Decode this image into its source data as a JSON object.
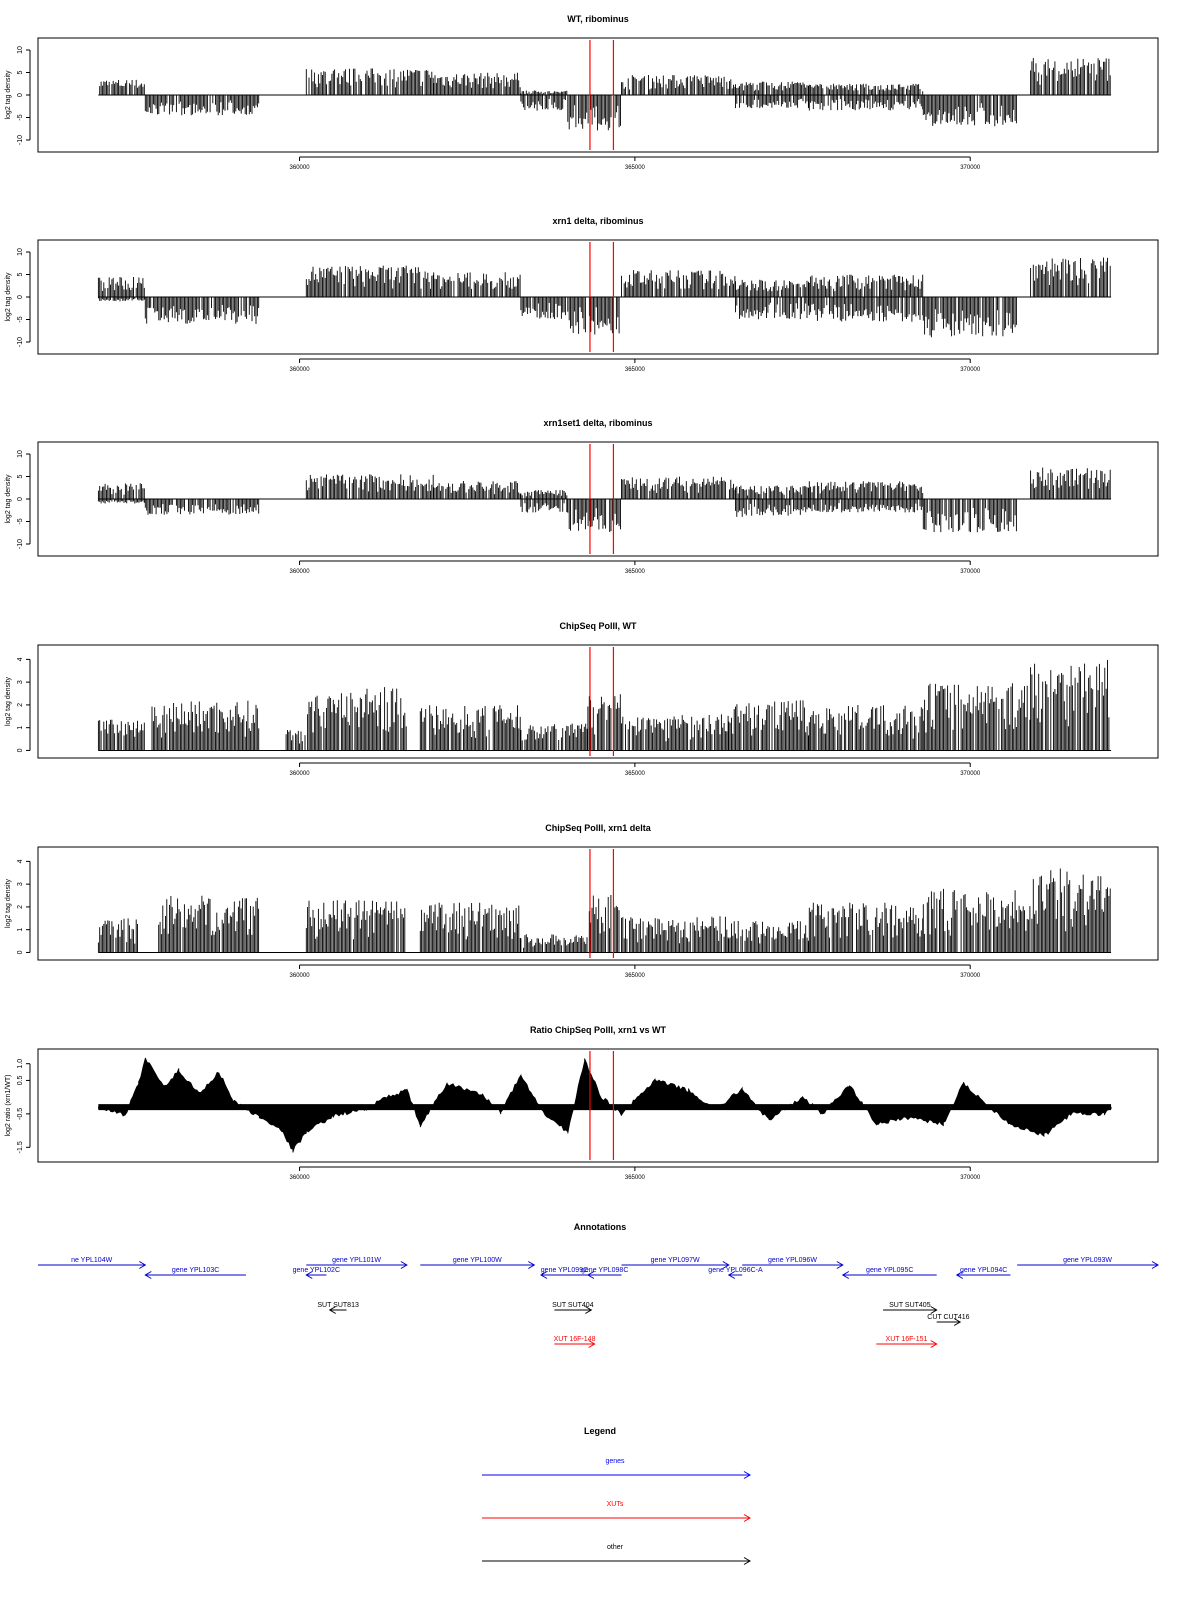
{
  "chart_data": [
    {
      "type": "bar",
      "title": "WT, ribominus",
      "ylabel": "log2 tag density",
      "ylim": [
        -12,
        12
      ],
      "yticks": [
        "10",
        "5",
        "0",
        "-5",
        "-10"
      ],
      "xlim": [
        356100,
        372800
      ],
      "xticks": [
        "360000",
        "365000",
        "370000"
      ],
      "markers": [
        364330,
        364680
      ],
      "series": [
        {
          "segments": [
            {
              "from": 357000,
              "to": 357700,
              "min": 0,
              "max": 3.5
            },
            {
              "from": 357700,
              "to": 359400,
              "min": -4.5,
              "max": 0
            },
            {
              "from": 360100,
              "to": 362000,
              "min": 0,
              "max": 6
            },
            {
              "from": 362000,
              "to": 363300,
              "min": 0,
              "max": 5
            },
            {
              "from": 363300,
              "to": 364000,
              "min": -3.5,
              "max": 1
            },
            {
              "from": 364000,
              "to": 364800,
              "min": -8,
              "max": 0
            },
            {
              "from": 364800,
              "to": 366500,
              "min": 0,
              "max": 4.5
            },
            {
              "from": 366500,
              "to": 367600,
              "min": -3,
              "max": 3
            },
            {
              "from": 367600,
              "to": 369300,
              "min": -3.5,
              "max": 2.5
            },
            {
              "from": 369300,
              "to": 370700,
              "min": -7,
              "max": 0
            },
            {
              "from": 370900,
              "to": 372100,
              "min": 0,
              "max": 8.5
            }
          ]
        }
      ]
    },
    {
      "type": "bar",
      "title": "xrn1 delta, ribominus",
      "ylabel": "log2 tag density",
      "ylim": [
        -12,
        12
      ],
      "yticks": [
        "10",
        "5",
        "0",
        "-5",
        "-10"
      ],
      "xlim": [
        356100,
        372800
      ],
      "xticks": [
        "360000",
        "365000",
        "370000"
      ],
      "markers": [
        364330,
        364680
      ],
      "series": [
        {
          "segments": [
            {
              "from": 357000,
              "to": 357700,
              "min": -1,
              "max": 4.5
            },
            {
              "from": 357700,
              "to": 359400,
              "min": -6,
              "max": 0
            },
            {
              "from": 360100,
              "to": 362000,
              "min": 0,
              "max": 7
            },
            {
              "from": 362000,
              "to": 363300,
              "min": 0,
              "max": 5.5
            },
            {
              "from": 363300,
              "to": 364000,
              "min": -5,
              "max": 0
            },
            {
              "from": 364000,
              "to": 364800,
              "min": -8.5,
              "max": 0
            },
            {
              "from": 364800,
              "to": 366500,
              "min": 0,
              "max": 6
            },
            {
              "from": 366500,
              "to": 367600,
              "min": -5,
              "max": 4
            },
            {
              "from": 367600,
              "to": 369300,
              "min": -5.5,
              "max": 5
            },
            {
              "from": 369300,
              "to": 370700,
              "min": -9,
              "max": 0
            },
            {
              "from": 370900,
              "to": 372100,
              "min": 0,
              "max": 9
            }
          ]
        }
      ]
    },
    {
      "type": "bar",
      "title": "xrn1set1 delta, ribominus",
      "ylabel": "log2 tag density",
      "ylim": [
        -12,
        12
      ],
      "yticks": [
        "10",
        "5",
        "0",
        "-5",
        "-10"
      ],
      "xlim": [
        356100,
        372800
      ],
      "xticks": [
        "360000",
        "365000",
        "370000"
      ],
      "markers": [
        364330,
        364680
      ],
      "series": [
        {
          "segments": [
            {
              "from": 357000,
              "to": 357700,
              "min": -1,
              "max": 3.5
            },
            {
              "from": 357700,
              "to": 359400,
              "min": -3.5,
              "max": 0
            },
            {
              "from": 360100,
              "to": 362000,
              "min": 0,
              "max": 5.5
            },
            {
              "from": 362000,
              "to": 363300,
              "min": 0,
              "max": 4
            },
            {
              "from": 363300,
              "to": 364000,
              "min": -3,
              "max": 2
            },
            {
              "from": 364000,
              "to": 364800,
              "min": -8,
              "max": 0
            },
            {
              "from": 364800,
              "to": 366500,
              "min": 0,
              "max": 5
            },
            {
              "from": 366500,
              "to": 367600,
              "min": -4,
              "max": 3
            },
            {
              "from": 367600,
              "to": 369300,
              "min": -3,
              "max": 4
            },
            {
              "from": 369300,
              "to": 370700,
              "min": -7.5,
              "max": 0
            },
            {
              "from": 370900,
              "to": 372100,
              "min": 0,
              "max": 7
            }
          ]
        }
      ]
    },
    {
      "type": "bar",
      "title": "ChipSeq PolII, WT",
      "ylabel": "log2 tag density",
      "ylim": [
        -0.2,
        4.5
      ],
      "yticks": [
        "4",
        "3",
        "2",
        "1",
        "0"
      ],
      "xlim": [
        356100,
        372800
      ],
      "xticks": [
        "360000",
        "365000",
        "370000"
      ],
      "markers": [
        364330,
        364680
      ],
      "series": [
        {
          "segments": [
            {
              "from": 357000,
              "to": 357700,
              "min": 0,
              "max": 1.5
            },
            {
              "from": 357800,
              "to": 359400,
              "min": 0,
              "max": 2.2
            },
            {
              "from": 359800,
              "to": 360100,
              "min": 0,
              "max": 1
            },
            {
              "from": 360100,
              "to": 361600,
              "min": 0,
              "max": 2.8
            },
            {
              "from": 361800,
              "to": 363300,
              "min": 0,
              "max": 2
            },
            {
              "from": 363300,
              "to": 364300,
              "min": 0,
              "max": 1.2
            },
            {
              "from": 364300,
              "to": 364800,
              "min": 0,
              "max": 2.6
            },
            {
              "from": 364800,
              "to": 366400,
              "min": 0,
              "max": 1.6
            },
            {
              "from": 366400,
              "to": 367600,
              "min": 0,
              "max": 2.2
            },
            {
              "from": 367600,
              "to": 369300,
              "min": 0,
              "max": 2
            },
            {
              "from": 369300,
              "to": 370900,
              "min": 0,
              "max": 3
            },
            {
              "from": 370900,
              "to": 372100,
              "min": 0,
              "max": 4
            }
          ]
        }
      ]
    },
    {
      "type": "bar",
      "title": "ChipSeq PolII, xrn1 delta",
      "ylabel": "log2 tag density",
      "ylim": [
        -0.2,
        4.5
      ],
      "yticks": [
        "4",
        "3",
        "2",
        "1",
        "0"
      ],
      "xlim": [
        356100,
        372800
      ],
      "xticks": [
        "360000",
        "365000",
        "370000"
      ],
      "markers": [
        364330,
        364680
      ],
      "series": [
        {
          "segments": [
            {
              "from": 357000,
              "to": 357600,
              "min": 0,
              "max": 1.5
            },
            {
              "from": 357900,
              "to": 359400,
              "min": 0,
              "max": 2.5
            },
            {
              "from": 360100,
              "to": 361600,
              "min": 0,
              "max": 2.3
            },
            {
              "from": 361800,
              "to": 363300,
              "min": 0,
              "max": 2.2
            },
            {
              "from": 363300,
              "to": 364300,
              "min": 0,
              "max": 0.8
            },
            {
              "from": 364300,
              "to": 364800,
              "min": 0,
              "max": 2.6
            },
            {
              "from": 364800,
              "to": 366400,
              "min": 0,
              "max": 1.6
            },
            {
              "from": 366400,
              "to": 367600,
              "min": 0,
              "max": 1.5
            },
            {
              "from": 367600,
              "to": 369300,
              "min": 0,
              "max": 2.2
            },
            {
              "from": 369300,
              "to": 370900,
              "min": 0,
              "max": 2.8
            },
            {
              "from": 370900,
              "to": 372100,
              "min": 0,
              "max": 3.7
            }
          ]
        }
      ]
    },
    {
      "type": "area",
      "title": "Ratio ChipSeq PolII, xrn1 vs WT",
      "ylabel": "log2 ratio (xrn1/WT)",
      "ylim": [
        -1.85,
        1.35
      ],
      "baseline": -0.3,
      "yticks": [
        "1.0",
        "0.5",
        "-0.5",
        "-1.5"
      ],
      "xlim": [
        356100,
        372800
      ],
      "xticks": [
        "360000",
        "365000",
        "370000"
      ],
      "markers": [
        364330,
        364680
      ],
      "series": [
        {
          "points": [
            [
              357000,
              -0.3
            ],
            [
              357400,
              -0.55
            ],
            [
              357600,
              0.4
            ],
            [
              357700,
              1.15
            ],
            [
              358000,
              0.3
            ],
            [
              358200,
              0.8
            ],
            [
              358500,
              0.1
            ],
            [
              358800,
              0.75
            ],
            [
              359000,
              -0.1
            ],
            [
              359400,
              -0.6
            ],
            [
              359700,
              -0.9
            ],
            [
              359900,
              -1.6
            ],
            [
              360100,
              -1.05
            ],
            [
              360500,
              -0.55
            ],
            [
              361000,
              -0.35
            ],
            [
              361300,
              0.0
            ],
            [
              361600,
              0.2
            ],
            [
              361800,
              -0.85
            ],
            [
              362200,
              0.4
            ],
            [
              362700,
              0.1
            ],
            [
              363000,
              -0.45
            ],
            [
              363300,
              0.65
            ],
            [
              363600,
              -0.4
            ],
            [
              364000,
              -1.05
            ],
            [
              364250,
              1.1
            ],
            [
              364500,
              0.0
            ],
            [
              364800,
              -0.5
            ],
            [
              365300,
              0.5
            ],
            [
              365800,
              0.2
            ],
            [
              366200,
              -0.4
            ],
            [
              366600,
              0.25
            ],
            [
              367000,
              -0.7
            ],
            [
              367500,
              0.0
            ],
            [
              367800,
              -0.5
            ],
            [
              368200,
              0.35
            ],
            [
              368600,
              -0.8
            ],
            [
              369100,
              -0.6
            ],
            [
              369600,
              -0.8
            ],
            [
              369900,
              0.4
            ],
            [
              370300,
              -0.3
            ],
            [
              370600,
              -0.8
            ],
            [
              371100,
              -1.15
            ],
            [
              371500,
              -0.5
            ],
            [
              372000,
              -0.5
            ],
            [
              372100,
              -0.3
            ]
          ]
        }
      ]
    }
  ],
  "annotations_title": "Annotations",
  "annotations": [
    {
      "label": "ne YPL104W",
      "from": 356100,
      "to": 357700,
      "dir": "right",
      "color": "#0000cc",
      "lane": 0
    },
    {
      "label": "gene YPL103C",
      "from": 357700,
      "to": 359200,
      "dir": "left",
      "color": "#0000cc",
      "lane": 1
    },
    {
      "label": "gene YPL102C",
      "from": 360100,
      "to": 360400,
      "dir": "left",
      "color": "#0000cc",
      "lane": 1
    },
    {
      "label": "gene YPL101W",
      "from": 360100,
      "to": 361600,
      "dir": "right",
      "color": "#0000cc",
      "lane": 0
    },
    {
      "label": "gene YPL100W",
      "from": 361800,
      "to": 363500,
      "dir": "right",
      "color": "#0000cc",
      "lane": 0
    },
    {
      "label": "gene YPL099C",
      "from": 363600,
      "to": 364300,
      "dir": "left",
      "color": "#0000cc",
      "lane": 1
    },
    {
      "label": "gene YPL098C",
      "from": 364300,
      "to": 364800,
      "dir": "left",
      "color": "#0000cc",
      "lane": 1
    },
    {
      "label": "gene YPL097W",
      "from": 364800,
      "to": 366400,
      "dir": "right",
      "color": "#0000cc",
      "lane": 0
    },
    {
      "label": "gene YPL096C-A",
      "from": 366400,
      "to": 366600,
      "dir": "left",
      "color": "#0000cc",
      "lane": 1
    },
    {
      "label": "gene YPL096W",
      "from": 366600,
      "to": 368100,
      "dir": "right",
      "color": "#0000cc",
      "lane": 0
    },
    {
      "label": "gene YPL095C",
      "from": 368100,
      "to": 369500,
      "dir": "left",
      "color": "#0000cc",
      "lane": 1
    },
    {
      "label": "gene YPL094C",
      "from": 369800,
      "to": 370600,
      "dir": "left",
      "color": "#0000cc",
      "lane": 1
    },
    {
      "label": "gene YPL093W",
      "from": 370700,
      "to": 372800,
      "dir": "right",
      "color": "#0000cc",
      "lane": 0
    },
    {
      "label": "SUT SUT813",
      "from": 360450,
      "to": 360700,
      "dir": "left",
      "color": "#000000",
      "lane": 2
    },
    {
      "label": "SUT SUT404",
      "from": 363800,
      "to": 364350,
      "dir": "right",
      "color": "#000000",
      "lane": 2
    },
    {
      "label": "SUT SUT405",
      "from": 368700,
      "to": 369500,
      "dir": "right",
      "color": "#000000",
      "lane": 2
    },
    {
      "label": "CUT CUT416",
      "from": 369500,
      "to": 369850,
      "dir": "right",
      "color": "#000000",
      "lane": 3
    },
    {
      "label": "XUT 16F-148",
      "from": 363800,
      "to": 364400,
      "dir": "right",
      "color": "#ff0000",
      "lane": 4
    },
    {
      "label": "XUT 16F-151",
      "from": 368600,
      "to": 369500,
      "dir": "right",
      "color": "#ff0000",
      "lane": 4
    }
  ],
  "legend_title": "Legend",
  "legend": [
    {
      "label": "genes",
      "color": "#0000ff"
    },
    {
      "label": "XUTs",
      "color": "#ff0000"
    },
    {
      "label": "other",
      "color": "#000000"
    }
  ],
  "colors": {
    "marker": "#ff0000",
    "bars": "#000000"
  }
}
